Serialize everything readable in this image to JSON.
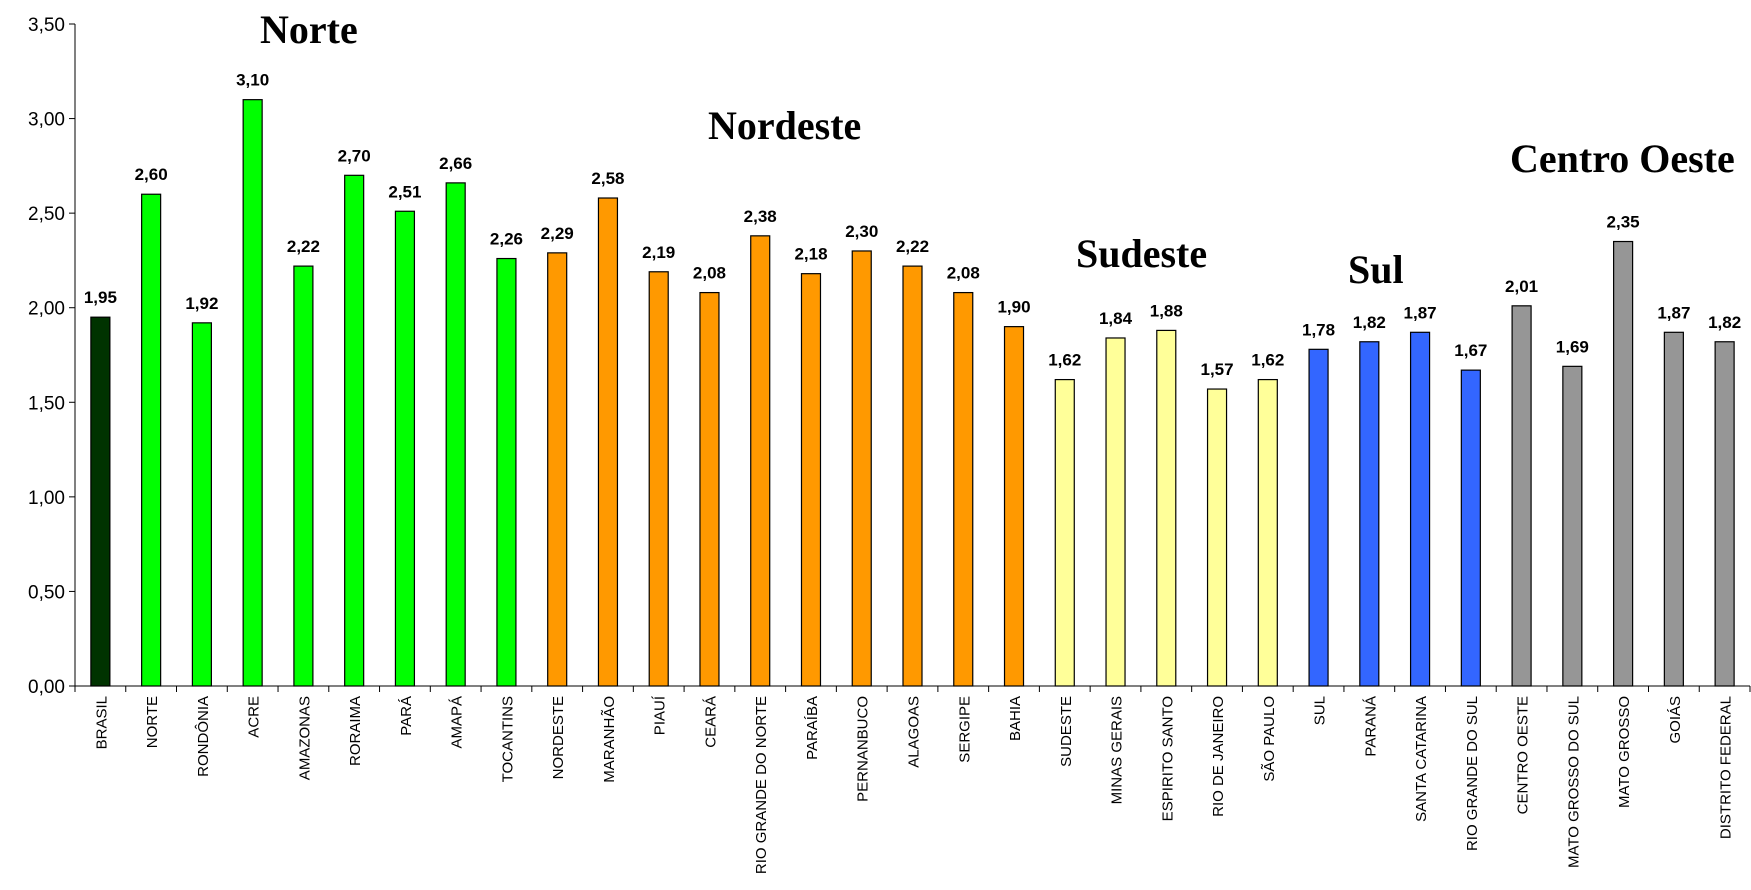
{
  "chart_data": {
    "type": "bar",
    "ylim": [
      0,
      3.5
    ],
    "yticks": [
      0,
      0.5,
      1.0,
      1.5,
      2.0,
      2.5,
      3.0,
      3.5
    ],
    "ytick_labels": [
      "0,00",
      "0,50",
      "1,00",
      "1,50",
      "2,00",
      "2,50",
      "3,00",
      "3,50"
    ],
    "categories": [
      "BRASIL",
      "NORTE",
      "RONDÔNIA",
      "ACRE",
      "AMAZONAS",
      "RORAIMA",
      "PARÁ",
      "AMAPÁ",
      "TOCANTINS",
      "NORDESTE",
      "MARANHÃO",
      "PIAUÍ",
      "CEARÁ",
      "RIO GRANDE DO NORTE",
      "PARAÍBA",
      "PERNANBUCO",
      "ALAGOAS",
      "SERGIPE",
      "BAHIA",
      "SUDESTE",
      "MINAS GERAIS",
      "ESPIRITO SANTO",
      "RIO DE JANEIRO",
      "SÃO PAULO",
      "SUL",
      "PARANÁ",
      "SANTA CATARINA",
      "RIO GRANDE DO SUL",
      "CENTRO OESTE",
      "MATO GROSSO DO SUL",
      "MATO GROSSO",
      "GOIÁS",
      "DISTRITO FEDERAL"
    ],
    "values": [
      1.95,
      2.6,
      1.92,
      3.1,
      2.22,
      2.7,
      2.51,
      2.66,
      2.26,
      2.29,
      2.58,
      2.19,
      2.08,
      2.38,
      2.18,
      2.3,
      2.22,
      2.08,
      1.9,
      1.62,
      1.84,
      1.88,
      1.57,
      1.62,
      1.78,
      1.82,
      1.87,
      1.67,
      2.01,
      1.69,
      2.35,
      1.87,
      1.82
    ],
    "value_labels": [
      "1,95",
      "2,60",
      "1,92",
      "3,10",
      "2,22",
      "2,70",
      "2,51",
      "2,66",
      "2,26",
      "2,29",
      "2,58",
      "2,19",
      "2,08",
      "2,38",
      "2,18",
      "2,30",
      "2,22",
      "2,08",
      "1,90",
      "1,62",
      "1,84",
      "1,88",
      "1,57",
      "1,62",
      "1,78",
      "1,82",
      "1,87",
      "1,67",
      "2,01",
      "1,69",
      "2,35",
      "1,87",
      "1,82"
    ],
    "bar_colors": [
      "#003300",
      "#00ff00",
      "#00ff00",
      "#00ff00",
      "#00ff00",
      "#00ff00",
      "#00ff00",
      "#00ff00",
      "#00ff00",
      "#ff9900",
      "#ff9900",
      "#ff9900",
      "#ff9900",
      "#ff9900",
      "#ff9900",
      "#ff9900",
      "#ff9900",
      "#ff9900",
      "#ff9900",
      "#ffff99",
      "#ffff99",
      "#ffff99",
      "#ffff99",
      "#ffff99",
      "#3366ff",
      "#3366ff",
      "#3366ff",
      "#3366ff",
      "#969696",
      "#969696",
      "#969696",
      "#969696",
      "#969696"
    ],
    "legend": "none",
    "grid": false
  },
  "regions": {
    "norte": "Norte",
    "nordeste": "Nordeste",
    "sudeste": "Sudeste",
    "sul": "Sul",
    "centro_oeste": "Centro Oeste"
  }
}
